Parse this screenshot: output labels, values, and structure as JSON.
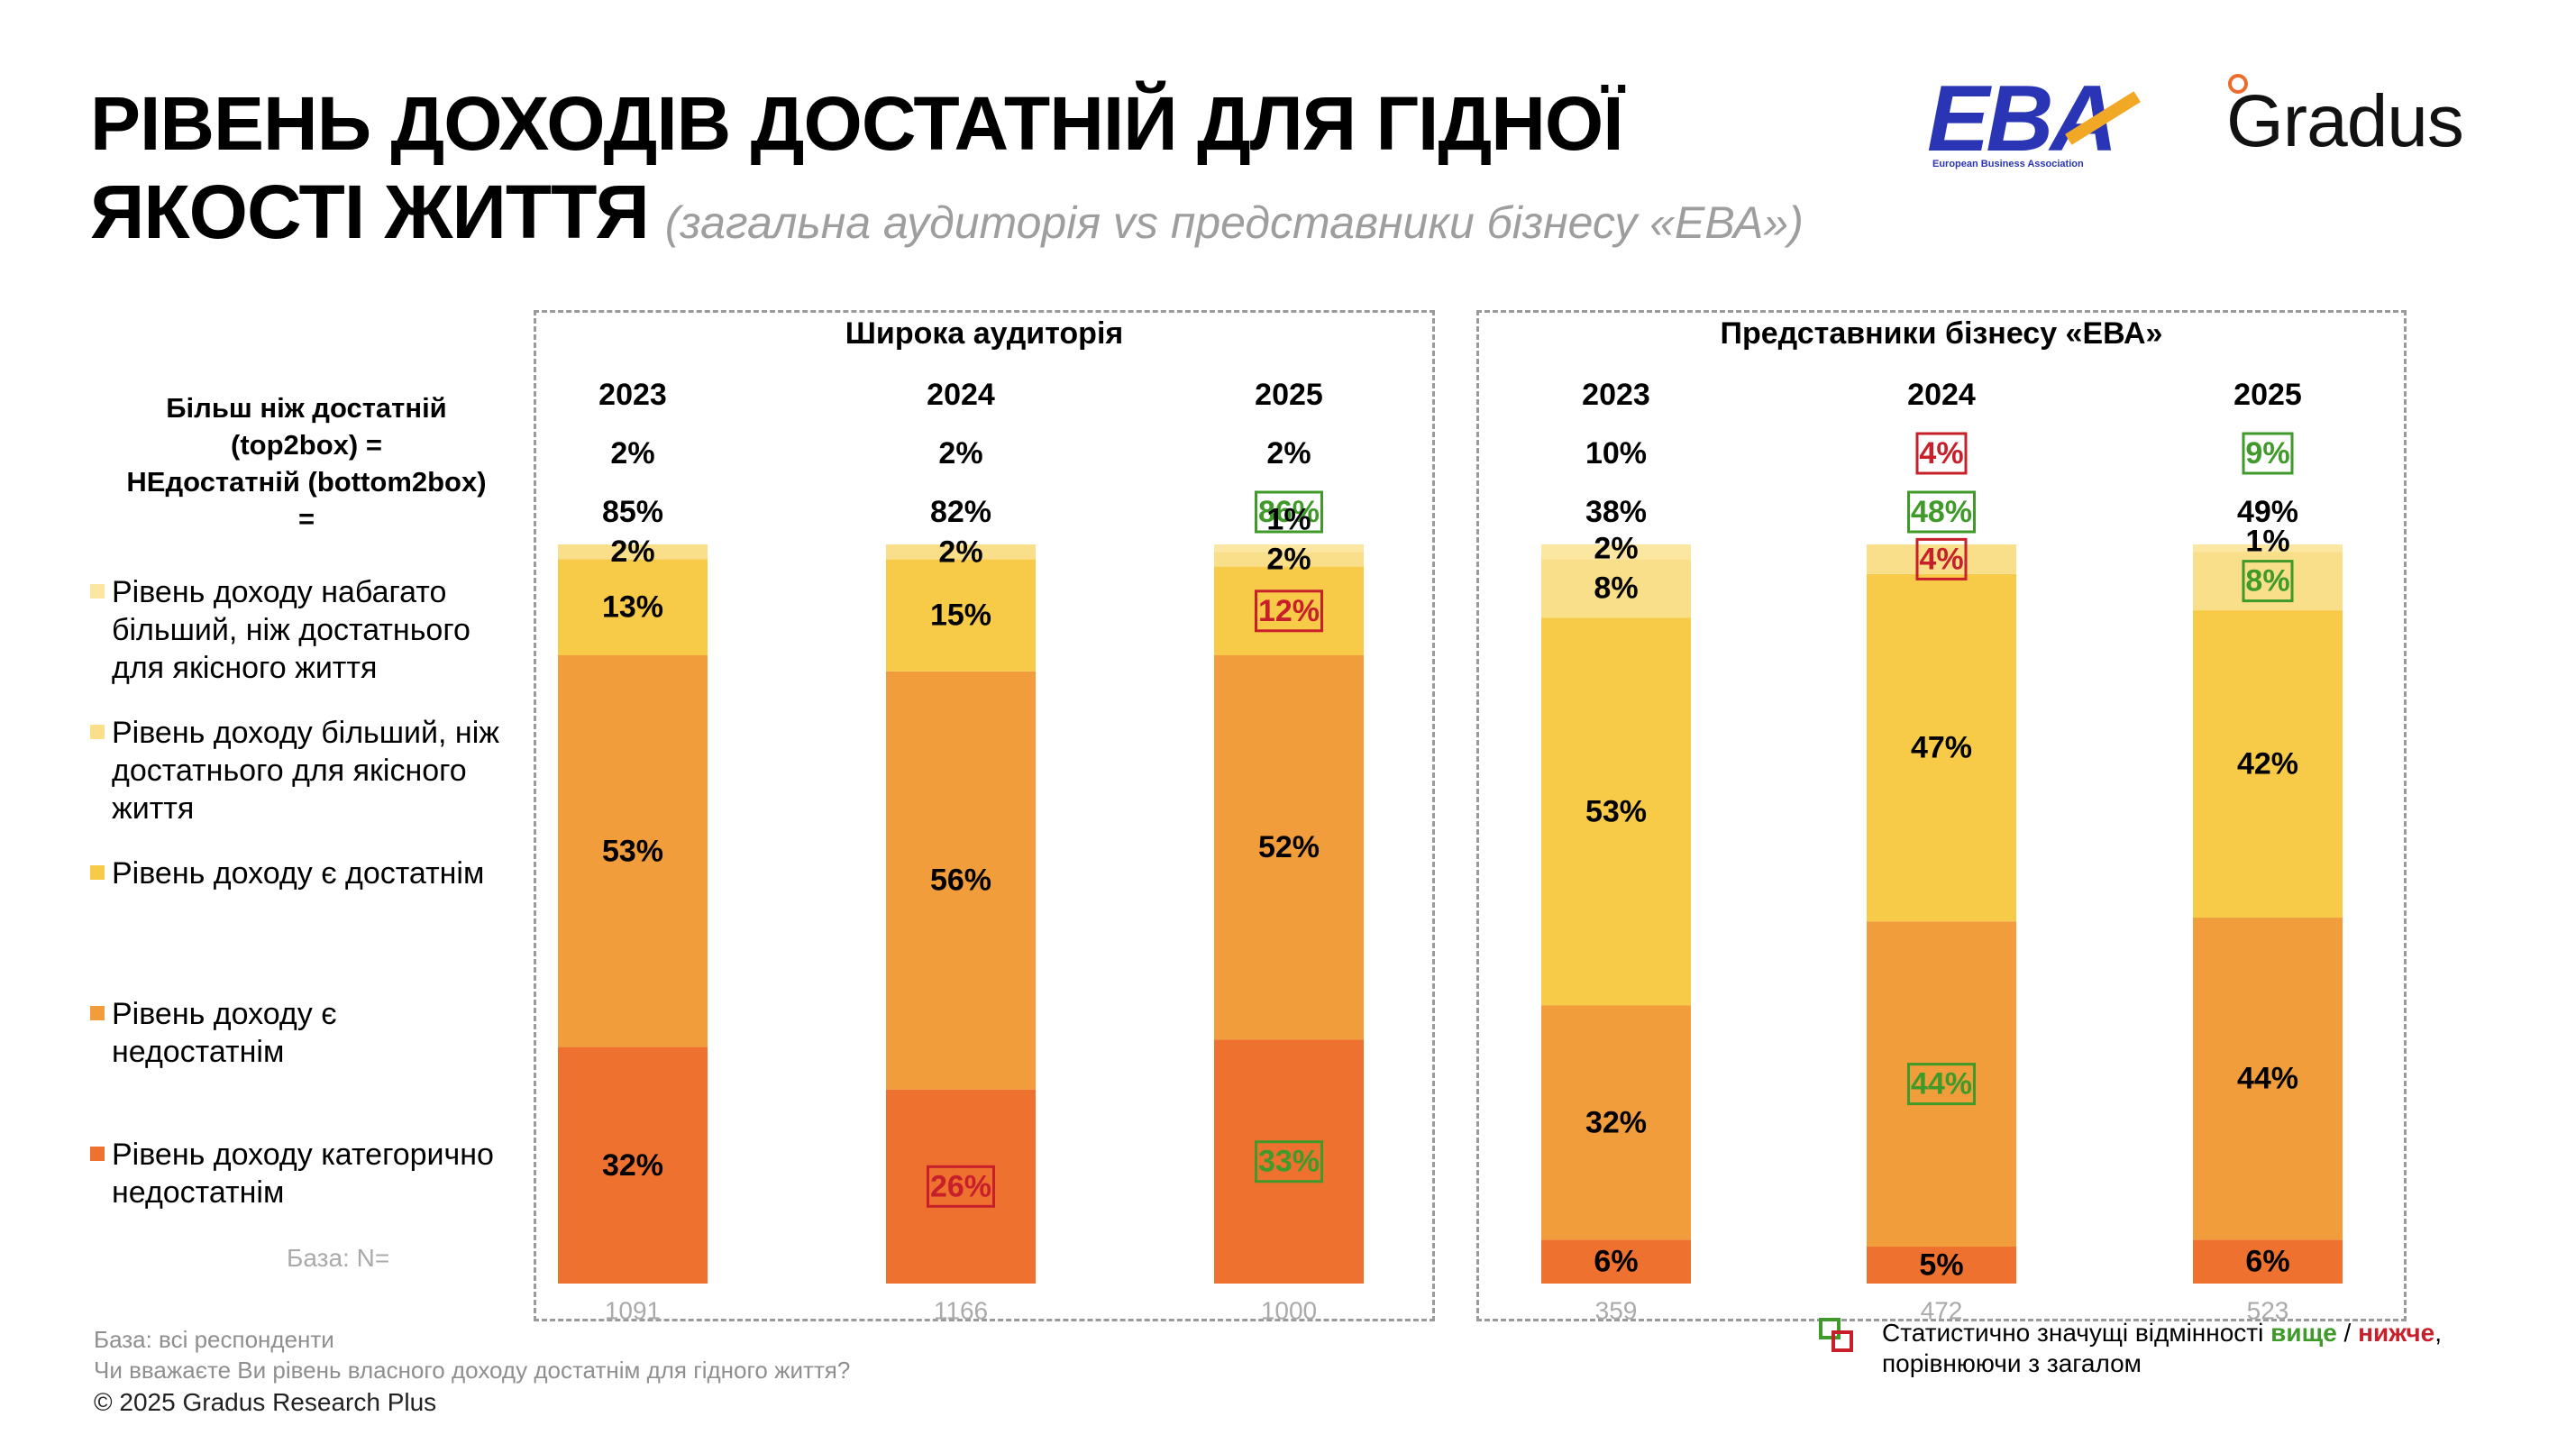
{
  "title": {
    "main_line1": "РІВЕНЬ ДОХОДІВ ДОСТАТНІЙ ДЛЯ ГІДНОЇ",
    "main_line2": "ЯКОСТІ ЖИТТЯ",
    "subtitle": "(загальна аудиторія vs представники бізнесу «ЕВА»)"
  },
  "logos": {
    "eba": "EBA",
    "eba_tagline": "European Business Association",
    "gradus": "Gradus"
  },
  "left_label": {
    "top2box": "Більш ніж достатній (top2box) =",
    "bottom2box": "НЕдостатній (bottom2box) ="
  },
  "legend": [
    {
      "label": "Рівень доходу набагато більший, ніж достатнього для якісного життя",
      "color": "#fbe6a2"
    },
    {
      "label": "Рівень доходу більший, ніж достатнього для якісного життя",
      "color": "#f9df8a"
    },
    {
      "label": "Рівень доходу є достатнім",
      "color": "#f7cb48"
    },
    {
      "label": "Рівень доходу є недостатнім",
      "color": "#f19d3b"
    },
    {
      "label": "Рівень доходу категорично недостатнім",
      "color": "#ee7130"
    }
  ],
  "base_label": "База: N=",
  "footer": {
    "base": "База: всі респонденти",
    "question": "Чи вважаєте Ви рівень власного доходу достатнім для гідного життя?",
    "copyright": "© 2025 Gradus Research Plus"
  },
  "significance_legend": {
    "prefix": "Статистично значущі відмінності ",
    "higher": "вище",
    "slash": " / ",
    "lower": "нижче",
    "suffix": ",",
    "line2": "порівнюючи з загалом"
  },
  "colors": {
    "much_more": "#fbe6a2",
    "more": "#f9df8a",
    "enough": "#f7cb48",
    "not_enough": "#f19d3b",
    "very_not_enough": "#ee7130",
    "sig_higher": "#3f9a2a",
    "sig_lower": "#c8202a"
  },
  "chart_data": [
    {
      "type": "bar",
      "stacked": true,
      "title": "Широка аудиторія",
      "categories": [
        "2023",
        "2024",
        "2025"
      ],
      "base_n": [
        "1091",
        "1166",
        "1000"
      ],
      "top2box": [
        {
          "value": "2%",
          "sig": ""
        },
        {
          "value": "2%",
          "sig": ""
        },
        {
          "value": "2%",
          "sig": ""
        }
      ],
      "bottom2box": [
        {
          "value": "85%",
          "sig": ""
        },
        {
          "value": "82%",
          "sig": ""
        },
        {
          "value": "86%",
          "sig": "higher"
        }
      ],
      "series": [
        {
          "name": "Рівень доходу категорично недостатнім",
          "values": [
            32,
            26,
            33
          ],
          "sig": [
            "",
            "lower",
            "higher"
          ]
        },
        {
          "name": "Рівень доходу є недостатнім",
          "values": [
            53,
            56,
            52
          ],
          "sig": [
            "",
            "",
            ""
          ]
        },
        {
          "name": "Рівень доходу є достатнім",
          "values": [
            13,
            15,
            12
          ],
          "sig": [
            "",
            "",
            "lower"
          ]
        },
        {
          "name": "Рівень доходу більший, ніж достатнього для якісного життя",
          "values": [
            2,
            2,
            2
          ],
          "sig": [
            "",
            "",
            ""
          ]
        },
        {
          "name": "Рівень доходу набагато більший, ніж достатнього для якісного життя",
          "values": [
            0,
            0,
            1
          ],
          "sig": [
            "",
            "",
            ""
          ]
        }
      ]
    },
    {
      "type": "bar",
      "stacked": true,
      "title": "Представники бізнесу «ЕВА»",
      "categories": [
        "2023",
        "2024",
        "2025"
      ],
      "base_n": [
        "359",
        "472",
        "523"
      ],
      "top2box": [
        {
          "value": "10%",
          "sig": ""
        },
        {
          "value": "4%",
          "sig": "lower"
        },
        {
          "value": "9%",
          "sig": "higher"
        }
      ],
      "bottom2box": [
        {
          "value": "38%",
          "sig": ""
        },
        {
          "value": "48%",
          "sig": "higher"
        },
        {
          "value": "49%",
          "sig": ""
        }
      ],
      "series": [
        {
          "name": "Рівень доходу категорично недостатнім",
          "values": [
            6,
            5,
            6
          ],
          "sig": [
            "",
            "",
            ""
          ]
        },
        {
          "name": "Рівень доходу є недостатнім",
          "values": [
            32,
            44,
            44
          ],
          "sig": [
            "",
            "higher",
            ""
          ]
        },
        {
          "name": "Рівень доходу є достатнім",
          "values": [
            53,
            47,
            42
          ],
          "sig": [
            "",
            "",
            ""
          ]
        },
        {
          "name": "Рівень доходу більший, ніж достатнього для якісного життя",
          "values": [
            8,
            4,
            8
          ],
          "sig": [
            "",
            "lower",
            "higher"
          ]
        },
        {
          "name": "Рівень доходу набагато більший, ніж достатнього для якісного життя",
          "values": [
            2,
            0,
            1
          ],
          "sig": [
            "",
            "",
            ""
          ]
        }
      ]
    }
  ]
}
